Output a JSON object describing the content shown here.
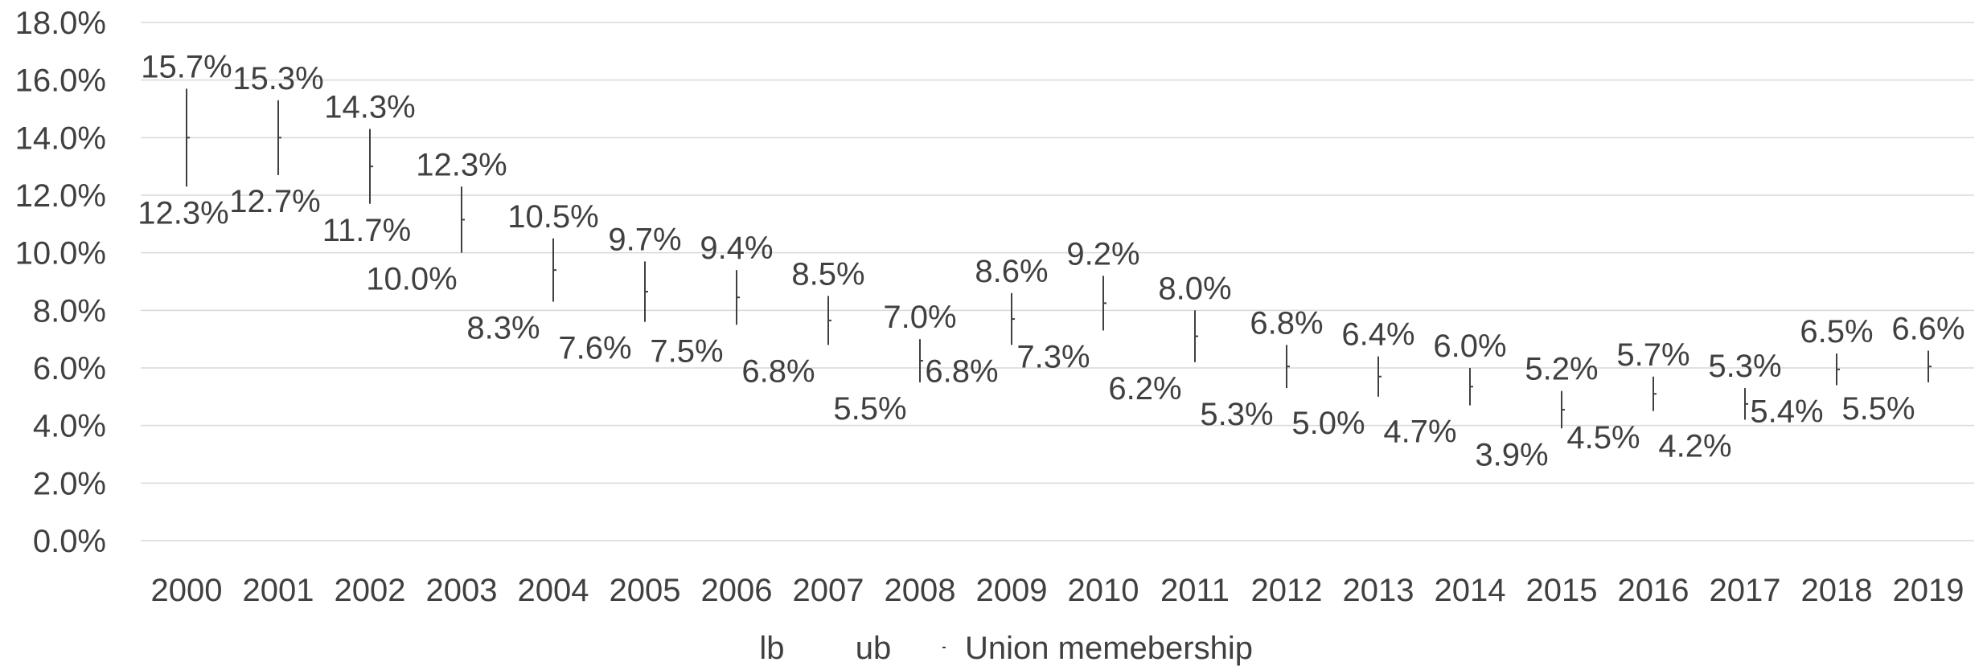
{
  "chart_data": {
    "type": "stock-hlc",
    "categories": [
      "2000",
      "2001",
      "2002",
      "2003",
      "2004",
      "2005",
      "2006",
      "2007",
      "2008",
      "2009",
      "2010",
      "2011",
      "2012",
      "2013",
      "2014",
      "2015",
      "2016",
      "2017",
      "2018",
      "2019"
    ],
    "series": [
      {
        "name": "lb",
        "values": [
          12.3,
          12.7,
          11.7,
          10.0,
          8.3,
          7.6,
          7.5,
          6.8,
          5.5,
          6.8,
          7.3,
          6.2,
          5.3,
          5.0,
          4.7,
          3.9,
          4.5,
          4.2,
          5.4,
          5.5
        ]
      },
      {
        "name": "ub",
        "values": [
          15.7,
          15.3,
          14.3,
          12.3,
          10.5,
          9.7,
          9.4,
          8.5,
          7.0,
          8.6,
          9.2,
          8.0,
          6.8,
          6.4,
          6.0,
          5.2,
          5.7,
          5.3,
          6.5,
          6.6
        ]
      },
      {
        "name": "Union memebership",
        "values": [
          14.0,
          14.0,
          13.0,
          11.15,
          9.4,
          8.65,
          8.45,
          7.65,
          6.25,
          7.7,
          8.25,
          7.1,
          6.05,
          5.7,
          5.35,
          4.55,
          5.1,
          4.75,
          5.95,
          6.05
        ]
      }
    ],
    "lb_labels": [
      "12.3%",
      "12.7%",
      "11.7%",
      "10.0%",
      "8.3%",
      "7.6%",
      "7.5%",
      "6.8%",
      "5.5%",
      "6.8%",
      "7.3%",
      "6.2%",
      "5.3%",
      "5.0%",
      "4.7%",
      "3.9%",
      "4.5%",
      "4.2%",
      "5.4%",
      "5.5%"
    ],
    "ub_labels": [
      "15.7%",
      "15.3%",
      "14.3%",
      "12.3%",
      "10.5%",
      "9.7%",
      "9.4%",
      "8.5%",
      "7.0%",
      "8.6%",
      "9.2%",
      "8.0%",
      "6.8%",
      "6.4%",
      "6.0%",
      "5.2%",
      "5.7%",
      "5.3%",
      "6.5%",
      "6.6%"
    ],
    "y_ticks": [
      "0.0%",
      "2.0%",
      "4.0%",
      "6.0%",
      "8.0%",
      "10.0%",
      "12.0%",
      "14.0%",
      "16.0%",
      "18.0%"
    ],
    "ylim": [
      0,
      18
    ],
    "grid": true,
    "legend_position": "bottom",
    "colors": {
      "gridline": "#d9d9d9",
      "series_line": "#404040",
      "text": "#404040"
    }
  }
}
